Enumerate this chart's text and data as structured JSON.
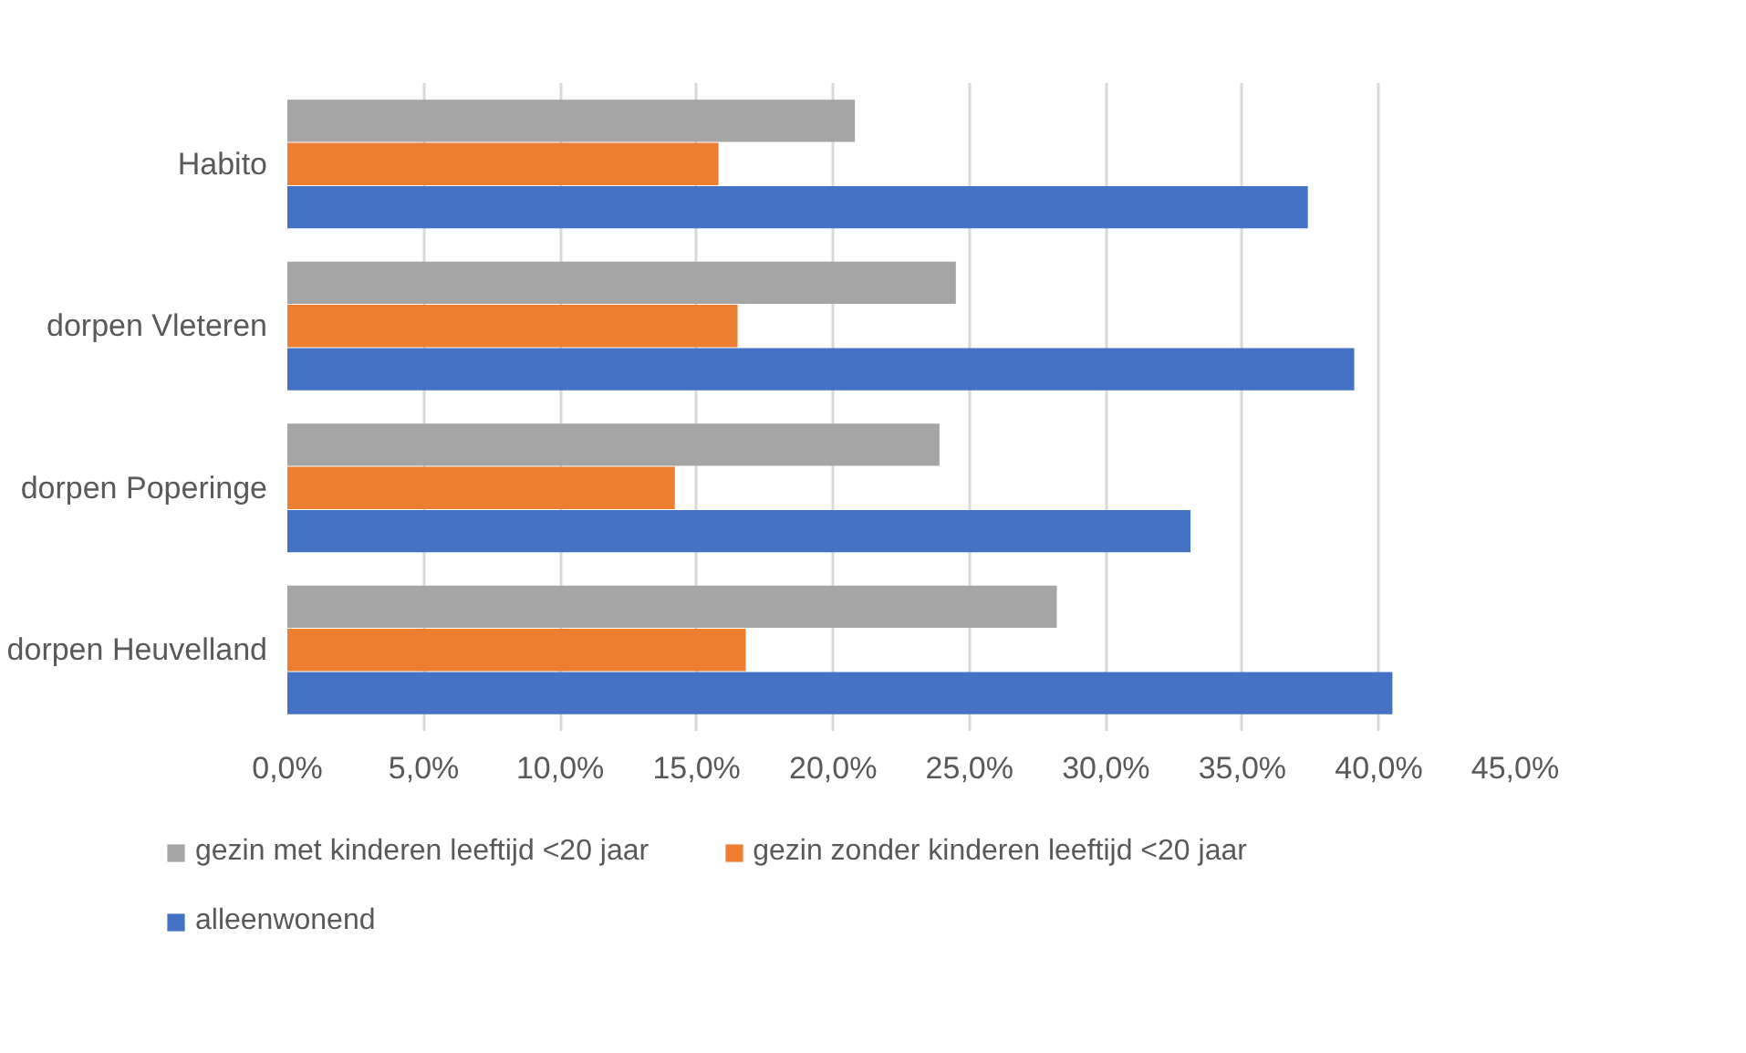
{
  "chart_data": {
    "type": "bar",
    "orientation": "horizontal",
    "categories": [
      "Habito",
      "dorpen Vleteren",
      "dorpen Poperinge",
      "dorpen Heuvelland"
    ],
    "series": [
      {
        "name": "gezin met kinderen leeftijd <20 jaar",
        "color": "#a5a5a5",
        "values": [
          20.8,
          24.5,
          23.9,
          28.2
        ]
      },
      {
        "name": "gezin zonder kinderen leeftijd <20 jaar",
        "color": "#ed7d31",
        "values": [
          15.8,
          16.5,
          14.2,
          16.8
        ]
      },
      {
        "name": "alleenwonend",
        "color": "#4472c4",
        "values": [
          37.4,
          39.1,
          33.1,
          40.5
        ]
      }
    ],
    "xlim": [
      0,
      45
    ],
    "xticks": [
      {
        "value": 0,
        "label": "0,0%"
      },
      {
        "value": 5,
        "label": "5,0%"
      },
      {
        "value": 10,
        "label": "10,0%"
      },
      {
        "value": 15,
        "label": "15,0%"
      },
      {
        "value": 20,
        "label": "20,0%"
      },
      {
        "value": 25,
        "label": "25,0%"
      },
      {
        "value": 30,
        "label": "30,0%"
      },
      {
        "value": 35,
        "label": "35,0%"
      },
      {
        "value": 40,
        "label": "40,0%"
      },
      {
        "value": 45,
        "label": "45,0%"
      }
    ],
    "grid": "x",
    "legend": "bottom"
  }
}
